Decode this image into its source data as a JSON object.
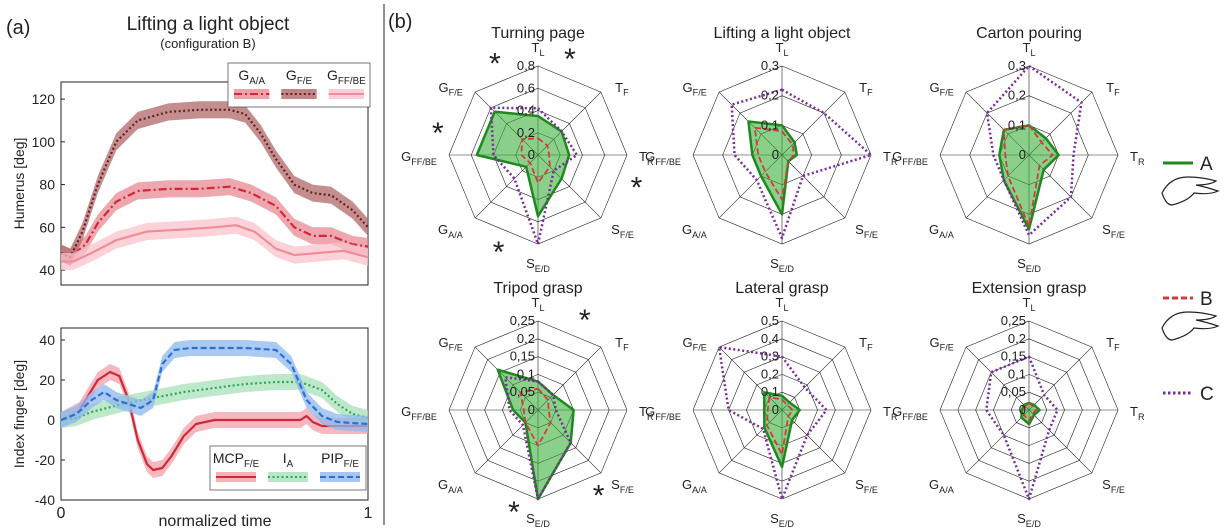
{
  "panel_a": {
    "label": "(a)",
    "title": "Lifting a light object",
    "subtitle": "(configuration B)",
    "xtick_labels": [
      "0",
      "1"
    ],
    "xlabel": "normalized time"
  },
  "panel_b": {
    "label": "(b)"
  },
  "hand_legend": [
    {
      "label": "A",
      "color": "#1e8a1e",
      "style": "solid"
    },
    {
      "label": "B",
      "color": "#d43c3c",
      "style": "dashed"
    },
    {
      "label": "C",
      "color": "#7a2a9a",
      "style": "dotted"
    }
  ],
  "radar_axes": [
    {
      "base": "T",
      "sub": "L"
    },
    {
      "base": "T",
      "sub": "F"
    },
    {
      "base": "T",
      "sub": "R"
    },
    {
      "base": "S",
      "sub": "F/E"
    },
    {
      "base": "S",
      "sub": "E/D"
    },
    {
      "base": "G",
      "sub": "A/A"
    },
    {
      "base": "G",
      "sub": "FF/BE"
    },
    {
      "base": "G",
      "sub": "F/E"
    }
  ],
  "chart_data": [
    {
      "type": "line",
      "title": "",
      "ylabel": "Humerus [deg]",
      "xlabel": "",
      "xlim": [
        0,
        1
      ],
      "ylim": [
        33,
        128
      ],
      "yticks": [
        40,
        60,
        80,
        100,
        120
      ],
      "legend_position": "top-right",
      "series": [
        {
          "label_base": "G",
          "label_sub": "A/A",
          "color": "#d0283a",
          "band": "#e88a93",
          "dash": "8,3,2,3",
          "x": [
            0,
            0.03,
            0.08,
            0.12,
            0.18,
            0.25,
            0.35,
            0.45,
            0.55,
            0.62,
            0.7,
            0.76,
            0.82,
            0.88,
            0.95,
            1.0
          ],
          "y": [
            48,
            46,
            52,
            62,
            72,
            77,
            78,
            78,
            79,
            76,
            70,
            60,
            56,
            56,
            52,
            51
          ]
        },
        {
          "label_base": "G",
          "label_sub": "F/E",
          "color": "#6b1e22",
          "band": "#b06868",
          "dash": "2,2.5",
          "x": [
            0,
            0.03,
            0.07,
            0.12,
            0.18,
            0.25,
            0.35,
            0.45,
            0.55,
            0.6,
            0.65,
            0.7,
            0.76,
            0.82,
            0.88,
            0.95,
            1.0
          ],
          "y": [
            48,
            46,
            58,
            80,
            100,
            110,
            114,
            115,
            115,
            113,
            104,
            92,
            80,
            76,
            75,
            68,
            60
          ]
        },
        {
          "label_base": "G",
          "label_sub": "FF/BE",
          "color": "#f08c9a",
          "band": "#f8c3cb",
          "dash": "",
          "x": [
            0,
            0.04,
            0.1,
            0.18,
            0.28,
            0.4,
            0.5,
            0.57,
            0.63,
            0.7,
            0.76,
            0.84,
            0.92,
            1.0
          ],
          "y": [
            44,
            44,
            48,
            54,
            58,
            59,
            60,
            61,
            58,
            50,
            47,
            48,
            49,
            46
          ]
        }
      ]
    },
    {
      "type": "line",
      "title": "",
      "ylabel": "Index finger [deg]",
      "xlabel": "normalized time",
      "xlim": [
        0,
        1
      ],
      "ylim": [
        -40,
        46
      ],
      "yticks": [
        -40,
        -20,
        0,
        20,
        40
      ],
      "legend_position": "bottom-right",
      "series": [
        {
          "label_base": "MCP",
          "label_sub": "F/E",
          "color": "#d0283a",
          "band": "#f0a0a8",
          "dash": "",
          "x": [
            0,
            0.06,
            0.12,
            0.16,
            0.19,
            0.22,
            0.25,
            0.28,
            0.3,
            0.33,
            0.36,
            0.4,
            0.44,
            0.5,
            0.6,
            0.7,
            0.78,
            0.8,
            0.82,
            0.85,
            0.88,
            1.0
          ],
          "y": [
            0,
            5,
            20,
            24,
            22,
            10,
            -10,
            -22,
            -25,
            -24,
            -18,
            -8,
            -2,
            0,
            0,
            0,
            0,
            2,
            -1,
            -3,
            -3,
            -3
          ]
        },
        {
          "label_base": "I",
          "label_sub": "A",
          "color": "#2ca85a",
          "band": "#a8e0b8",
          "dash": "2,2.5",
          "x": [
            0,
            0.05,
            0.1,
            0.2,
            0.3,
            0.4,
            0.5,
            0.6,
            0.7,
            0.78,
            0.85,
            0.9,
            0.95,
            1.0
          ],
          "y": [
            0,
            1,
            4,
            8,
            11,
            14,
            16,
            18,
            19,
            19,
            15,
            8,
            3,
            1
          ]
        },
        {
          "label_base": "PIP",
          "label_sub": "F/E",
          "color": "#2e6fd6",
          "band": "#8fb8ee",
          "dash": "6,3",
          "x": [
            0,
            0.05,
            0.1,
            0.14,
            0.18,
            0.22,
            0.26,
            0.3,
            0.33,
            0.37,
            0.42,
            0.5,
            0.6,
            0.7,
            0.75,
            0.8,
            0.85,
            0.9,
            1.0
          ],
          "y": [
            0,
            3,
            10,
            14,
            10,
            8,
            6,
            10,
            28,
            35,
            36,
            36,
            36,
            35,
            28,
            10,
            2,
            -1,
            -2
          ]
        }
      ]
    },
    {
      "type": "radar",
      "title": "Turning page",
      "r_max": 0.8,
      "rings": [
        "0",
        "0,2",
        "0,4",
        "0,6",
        "0,8"
      ],
      "asterisks": [
        0.4,
        2.38,
        4.5,
        6.3,
        7.45
      ],
      "series": [
        {
          "name": "A",
          "values": [
            0.35,
            0.3,
            0.28,
            0.3,
            0.55,
            0.15,
            0.55,
            0.55
          ]
        },
        {
          "name": "B",
          "values": [
            0.15,
            0.12,
            0.1,
            0.15,
            0.25,
            0.1,
            0.15,
            0.2
          ]
        },
        {
          "name": "C",
          "values": [
            0.42,
            0.3,
            0.35,
            0.2,
            0.8,
            0.3,
            0.4,
            0.6
          ]
        }
      ]
    },
    {
      "type": "radar",
      "title": "Lifting a light object",
      "r_max": 0.3,
      "rings": [
        "0",
        "0,1",
        "0,2",
        "0,3"
      ],
      "asterisks": [],
      "series": [
        {
          "name": "A",
          "values": [
            0.1,
            0.06,
            0.05,
            0.03,
            0.2,
            0.1,
            0.1,
            0.16
          ]
        },
        {
          "name": "B",
          "values": [
            0.08,
            0.05,
            0.04,
            0.03,
            0.15,
            0.08,
            0.08,
            0.13
          ]
        },
        {
          "name": "C",
          "values": [
            0.22,
            0.2,
            0.3,
            0.1,
            0.28,
            0.12,
            0.16,
            0.24
          ]
        }
      ]
    },
    {
      "type": "radar",
      "title": "Carton pouring",
      "r_max": 0.3,
      "rings": [
        "0",
        "0,1",
        "0,2",
        "0,3"
      ],
      "asterisks": [],
      "series": [
        {
          "name": "A",
          "values": [
            0.1,
            0.08,
            0.1,
            0.07,
            0.25,
            0.12,
            0.1,
            0.12
          ]
        },
        {
          "name": "B",
          "values": [
            0.1,
            0.06,
            0.08,
            0.05,
            0.24,
            0.1,
            0.08,
            0.12
          ]
        },
        {
          "name": "C",
          "values": [
            0.3,
            0.25,
            0.15,
            0.2,
            0.27,
            0.12,
            0.12,
            0.2
          ]
        }
      ]
    },
    {
      "type": "radar",
      "title": "Tripod grasp",
      "r_max": 0.25,
      "rings": [
        "0",
        "0,05",
        "0,1",
        "0,15",
        "0,2",
        "0,25"
      ],
      "asterisks": [
        0.6,
        3.2,
        4.3
      ],
      "series": [
        {
          "name": "A",
          "values": [
            0.08,
            0.06,
            0.1,
            0.13,
            0.25,
            0.05,
            0.07,
            0.16
          ]
        },
        {
          "name": "B",
          "values": [
            0.06,
            0.04,
            0.03,
            0.05,
            0.1,
            0.05,
            0.04,
            0.07
          ]
        },
        {
          "name": "C",
          "values": [
            0.08,
            0.06,
            0.05,
            0.13,
            0.25,
            0.06,
            0.08,
            0.13
          ]
        }
      ]
    },
    {
      "type": "radar",
      "title": "Lateral grasp",
      "r_max": 0.5,
      "rings": [
        "0",
        "0,1",
        "0,2",
        "0,3",
        "0,4",
        "0,5"
      ],
      "asterisks": [],
      "series": [
        {
          "name": "A",
          "values": [
            0.08,
            0.06,
            0.1,
            0.08,
            0.32,
            0.14,
            0.1,
            0.14
          ]
        },
        {
          "name": "B",
          "values": [
            0.06,
            0.04,
            0.06,
            0.05,
            0.25,
            0.12,
            0.08,
            0.1
          ]
        },
        {
          "name": "C",
          "values": [
            0.3,
            0.18,
            0.25,
            0.2,
            0.5,
            0.15,
            0.3,
            0.5
          ]
        }
      ]
    },
    {
      "type": "radar",
      "title": "Extension grasp",
      "r_max": 0.25,
      "rings": [
        "0",
        "0,05",
        "0,1",
        "0,15",
        "0,2",
        "0,25"
      ],
      "asterisks": [],
      "series": [
        {
          "name": "A",
          "values": [
            0.02,
            0.02,
            0.03,
            0.02,
            0.04,
            0.03,
            0.02,
            0.02
          ]
        },
        {
          "name": "B",
          "values": [
            0.02,
            0.015,
            0.02,
            0.015,
            0.03,
            0.02,
            0.015,
            0.015
          ]
        },
        {
          "name": "C",
          "values": [
            0.15,
            0.06,
            0.08,
            0.08,
            0.25,
            0.1,
            0.12,
            0.15
          ]
        }
      ]
    }
  ]
}
